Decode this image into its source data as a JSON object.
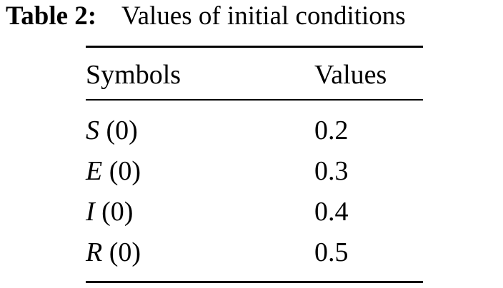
{
  "caption": {
    "label": "Table 2:",
    "text": "Values of initial conditions"
  },
  "table": {
    "header": [
      "Symbols",
      "Values"
    ],
    "rows": [
      [
        {
          "symbol": "S",
          "arg": "(0)"
        },
        "0.2"
      ],
      [
        {
          "symbol": "E",
          "arg": "(0)"
        },
        "0.3"
      ],
      [
        {
          "symbol": "I",
          "arg": "(0)"
        },
        "0.4"
      ],
      [
        {
          "symbol": "R",
          "arg": "(0)"
        },
        "0.5"
      ]
    ]
  }
}
